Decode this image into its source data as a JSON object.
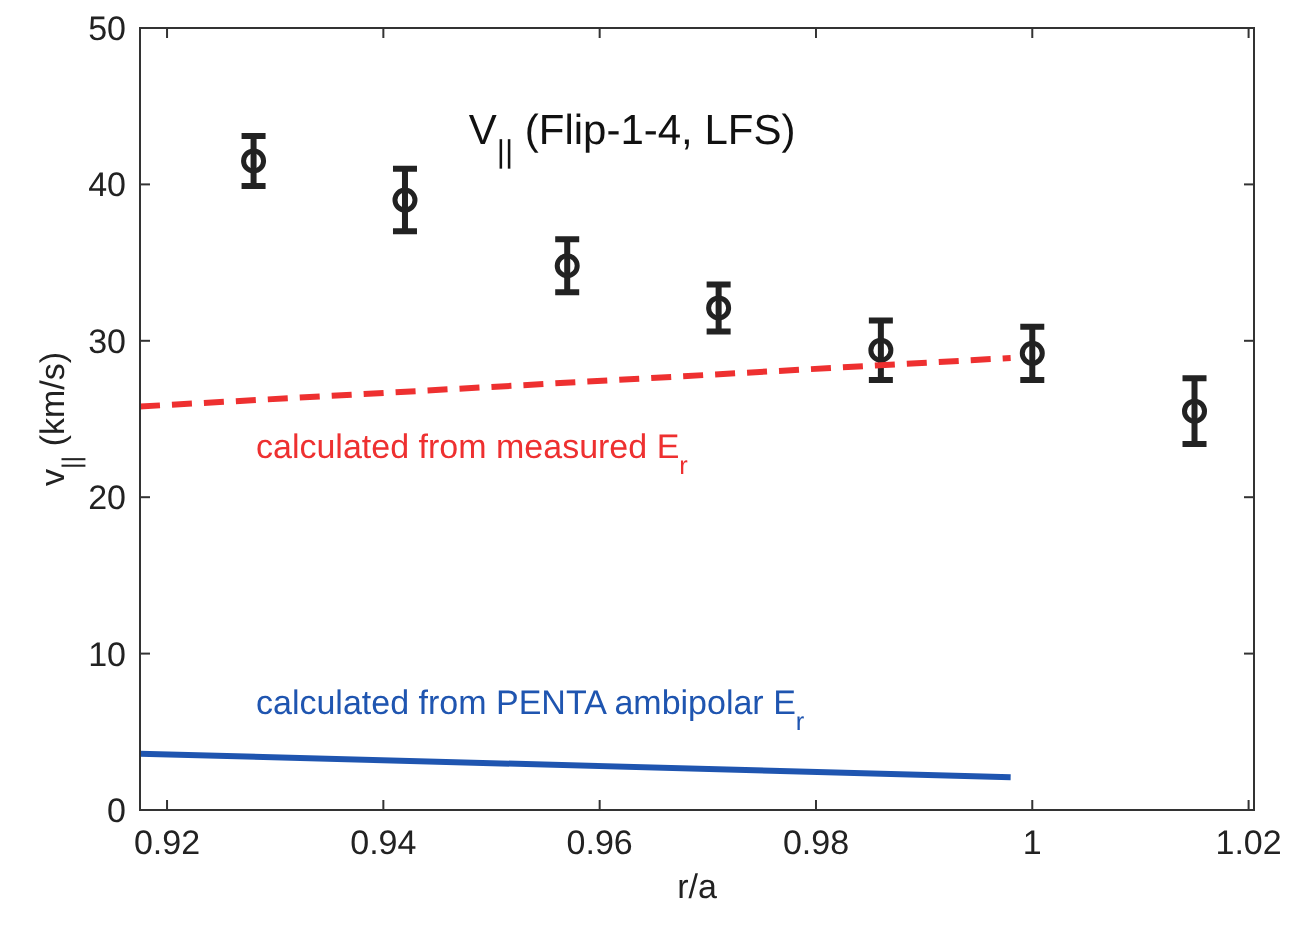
{
  "chart_data": {
    "type": "scatter",
    "title": "V$_{||}$ (Flip-1-4, LFS)",
    "xlabel": "r/a",
    "ylabel": "v$_{||}$ (km/s)",
    "xlim": [
      0.9175,
      1.0205
    ],
    "xticks": [
      0.92,
      0.94,
      0.96,
      0.98,
      1,
      1.02
    ],
    "ylim": [
      0,
      50
    ],
    "yticks": [
      0,
      10,
      20,
      30,
      40,
      50
    ],
    "series": [
      {
        "color": "#222222",
        "marker": "circle",
        "x": [
          0.928,
          0.942,
          0.957,
          0.971,
          0.986,
          1.0,
          1.015
        ],
        "values": [
          41.5,
          39.0,
          34.8,
          32.1,
          29.4,
          29.2,
          25.5
        ],
        "errors": [
          1.6,
          2.0,
          1.7,
          1.5,
          1.9,
          1.7,
          2.1
        ]
      },
      {
        "type": "line",
        "name": "calculated from measured E$_{r}$",
        "color": "#ee3030",
        "line_style": "dashed",
        "x": [
          0.9175,
          0.998
        ],
        "values": [
          25.8,
          28.9
        ]
      },
      {
        "type": "line",
        "name": "calculated from PENTA ambipolar E$_{r}$",
        "color": "#1f55b0",
        "line_style": "solid",
        "x": [
          0.9175,
          0.998
        ],
        "values": [
          3.6,
          2.1
        ]
      }
    ]
  }
}
